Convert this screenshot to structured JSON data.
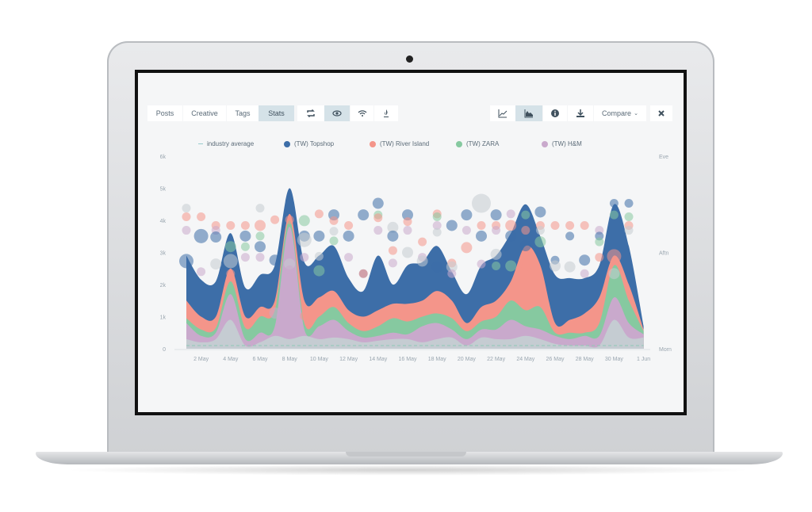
{
  "toolbar": {
    "tabs": [
      {
        "label": "Posts",
        "active": false
      },
      {
        "label": "Creative",
        "active": false
      },
      {
        "label": "Tags",
        "active": false
      },
      {
        "label": "Stats",
        "active": true
      }
    ],
    "icon_buttons": [
      {
        "icon": "retweet-icon",
        "active": false
      },
      {
        "icon": "eye-icon",
        "active": true
      },
      {
        "icon": "wifi-icon",
        "active": false
      },
      {
        "icon": "flame-icon",
        "active": false
      }
    ],
    "right_buttons": [
      {
        "icon": "line-chart-icon",
        "active": false
      },
      {
        "icon": "area-chart-icon",
        "active": true
      },
      {
        "icon": "info-icon",
        "active": false
      },
      {
        "icon": "download-icon",
        "active": false
      }
    ],
    "compare_label": "Compare",
    "close_icon": "close-icon"
  },
  "chart_data": {
    "type": "area",
    "stacked": true,
    "legend_placement": "top",
    "legend": [
      {
        "label": "industry average",
        "marker": "dash",
        "color": "#8fc9b5"
      },
      {
        "label": "(TW) Topshop",
        "color": "#3d6ea8"
      },
      {
        "label": "(TW) River Island",
        "color": "#f4958a"
      },
      {
        "label": "(TW) ZARA",
        "color": "#86c9a0"
      },
      {
        "label": "(TW) H&M",
        "color": "#c9a9cc"
      }
    ],
    "x_tick_labels": [
      "2 May",
      "4 May",
      "6 May",
      "8 May",
      "10 May",
      "12 May",
      "14 May",
      "16 May",
      "18 May",
      "20 May",
      "22 May",
      "24 May",
      "26 May",
      "28 May",
      "30 May",
      "1 Jun"
    ],
    "x_dates": [
      "1 May",
      "2 May",
      "3 May",
      "4 May",
      "5 May",
      "6 May",
      "7 May",
      "8 May",
      "9 May",
      "10 May",
      "11 May",
      "12 May",
      "13 May",
      "14 May",
      "15 May",
      "16 May",
      "17 May",
      "18 May",
      "19 May",
      "20 May",
      "21 May",
      "22 May",
      "23 May",
      "24 May",
      "25 May",
      "26 May",
      "27 May",
      "28 May",
      "29 May",
      "30 May",
      "31 May",
      "1 Jun"
    ],
    "y_tick_labels": [
      "0",
      "1k",
      "2k",
      "3k",
      "4k",
      "5k",
      "6k"
    ],
    "ylim": [
      0,
      6000
    ],
    "y2_tick_labels": [
      "Morn",
      "Aftn",
      "Eve"
    ],
    "industry_average": 100,
    "series": [
      {
        "color": "#c5ccd2",
        "values": [
          300,
          200,
          300,
          900,
          100,
          200,
          400,
          300,
          400,
          300,
          350,
          300,
          200,
          250,
          300,
          300,
          200,
          300,
          350,
          100,
          350,
          300,
          300,
          400,
          300,
          150,
          100,
          100,
          100,
          900,
          350,
          350
        ]
      },
      {
        "name": "(TW) H&M",
        "color": "#c9a9cc",
        "values": [
          500,
          200,
          200,
          800,
          200,
          300,
          300,
          3500,
          200,
          400,
          550,
          250,
          150,
          150,
          200,
          150,
          500,
          500,
          250,
          200,
          250,
          300,
          600,
          300,
          300,
          250,
          200,
          300,
          300,
          700,
          450,
          100
        ]
      },
      {
        "name": "(TW) ZARA",
        "color": "#86c9a0",
        "values": [
          150,
          200,
          150,
          400,
          350,
          500,
          500,
          200,
          200,
          300,
          400,
          250,
          200,
          300,
          450,
          400,
          300,
          300,
          350,
          250,
          250,
          400,
          600,
          500,
          700,
          100,
          200,
          100,
          400,
          1000,
          700,
          100
        ]
      },
      {
        "name": "(TW) River Island",
        "color": "#f4958a",
        "values": [
          550,
          400,
          350,
          400,
          350,
          300,
          300,
          200,
          700,
          600,
          500,
          400,
          450,
          500,
          450,
          550,
          500,
          700,
          550,
          250,
          450,
          500,
          600,
          2000,
          1300,
          300,
          400,
          600,
          800,
          300,
          500,
          50
        ]
      },
      {
        "name": "(TW) Topshop",
        "color": "#3d6ea8",
        "values": [
          1400,
          1150,
          1100,
          1100,
          900,
          1000,
          1100,
          800,
          1200,
          1300,
          1400,
          1000,
          800,
          1700,
          600,
          1200,
          1200,
          1400,
          900,
          900,
          1300,
          1400,
          1500,
          1300,
          900,
          1500,
          1300,
          1100,
          1000,
          1600,
          1200,
          100
        ]
      }
    ],
    "bubbles_time_axis": "0 = Morn, 1 = Aftn, 2 = Eve",
    "bubbles": [
      [
        1,
        1.46,
        "grey",
        "s"
      ],
      [
        1,
        1.37,
        "red",
        "s"
      ],
      [
        1,
        1.23,
        "purple",
        "s"
      ],
      [
        1,
        0.91,
        "blue",
        "l"
      ],
      [
        2,
        1.17,
        "blue",
        "l"
      ],
      [
        2,
        1.37,
        "red",
        "s"
      ],
      [
        2,
        0.8,
        "purple",
        "s"
      ],
      [
        3,
        1.28,
        "red",
        "s"
      ],
      [
        3,
        1.23,
        "purple",
        "s"
      ],
      [
        3,
        1.16,
        "blue",
        "m"
      ],
      [
        3,
        0.88,
        "grey",
        "m"
      ],
      [
        4,
        1.28,
        "red",
        "s"
      ],
      [
        4,
        1.06,
        "green",
        "m"
      ],
      [
        4,
        0.91,
        "grey",
        "l"
      ],
      [
        4,
        0.78,
        "red",
        "s"
      ],
      [
        5,
        1.28,
        "red",
        "s"
      ],
      [
        5,
        1.17,
        "blue",
        "m"
      ],
      [
        5,
        1.06,
        "green",
        "s"
      ],
      [
        5,
        0.95,
        "purple",
        "s"
      ],
      [
        6,
        1.46,
        "grey",
        "s"
      ],
      [
        6,
        1.28,
        "red",
        "m"
      ],
      [
        6,
        1.17,
        "green",
        "s"
      ],
      [
        6,
        1.06,
        "blue",
        "m"
      ],
      [
        6,
        0.95,
        "purple",
        "s"
      ],
      [
        7,
        1.34,
        "red",
        "s"
      ],
      [
        7,
        0.92,
        "blue",
        "m"
      ],
      [
        7,
        0.37,
        "purple",
        "m"
      ],
      [
        8,
        1.34,
        "red",
        "s"
      ],
      [
        8,
        0.88,
        "grey",
        "m"
      ],
      [
        8,
        0.82,
        "purple",
        "s"
      ],
      [
        9,
        1.33,
        "green",
        "m"
      ],
      [
        9,
        1.17,
        "blue",
        "m"
      ],
      [
        9,
        1.13,
        "grey",
        "l"
      ],
      [
        9,
        0.95,
        "purple",
        "s"
      ],
      [
        9,
        0.34,
        "red",
        "s"
      ],
      [
        10,
        1.4,
        "red",
        "s"
      ],
      [
        10,
        1.17,
        "blue",
        "m"
      ],
      [
        10,
        0.96,
        "grey",
        "s"
      ],
      [
        10,
        0.81,
        "green",
        "m"
      ],
      [
        11,
        1.39,
        "blue",
        "m"
      ],
      [
        11,
        1.33,
        "red",
        "s"
      ],
      [
        11,
        1.22,
        "grey",
        "s"
      ],
      [
        11,
        1.12,
        "green",
        "s"
      ],
      [
        12,
        1.28,
        "red",
        "s"
      ],
      [
        12,
        1.17,
        "blue",
        "m"
      ],
      [
        12,
        0.95,
        "purple",
        "s"
      ],
      [
        13,
        1.39,
        "blue",
        "m"
      ],
      [
        13,
        0.78,
        "darkred",
        "s"
      ],
      [
        14,
        1.51,
        "blue",
        "m"
      ],
      [
        14,
        1.39,
        "green",
        "s"
      ],
      [
        14,
        1.36,
        "red",
        "s"
      ],
      [
        14,
        1.23,
        "purple",
        "s"
      ],
      [
        15,
        1.26,
        "grey",
        "m"
      ],
      [
        15,
        1.17,
        "blue",
        "m"
      ],
      [
        15,
        1.02,
        "red",
        "s"
      ],
      [
        15,
        0.89,
        "purple",
        "s"
      ],
      [
        16,
        1.39,
        "blue",
        "m"
      ],
      [
        16,
        1.32,
        "red",
        "s"
      ],
      [
        16,
        1.23,
        "purple",
        "s"
      ],
      [
        16,
        1.0,
        "grey",
        "m"
      ],
      [
        17,
        1.11,
        "red",
        "s"
      ],
      [
        17,
        0.95,
        "purple",
        "s"
      ],
      [
        17,
        0.91,
        "grey",
        "m"
      ],
      [
        18,
        1.4,
        "red",
        "s"
      ],
      [
        18,
        1.37,
        "green",
        "s"
      ],
      [
        18,
        1.28,
        "purple",
        "s"
      ],
      [
        18,
        1.21,
        "grey",
        "s"
      ],
      [
        18,
        0.85,
        "blue",
        "m"
      ],
      [
        19,
        1.28,
        "blue",
        "m"
      ],
      [
        19,
        0.89,
        "red",
        "s"
      ],
      [
        19,
        0.85,
        "grey",
        "m"
      ],
      [
        19,
        0.78,
        "purple",
        "s"
      ],
      [
        20,
        1.39,
        "blue",
        "m"
      ],
      [
        20,
        1.23,
        "purple",
        "s"
      ],
      [
        20,
        1.05,
        "red",
        "m"
      ],
      [
        21,
        1.51,
        "grey",
        "xl"
      ],
      [
        21,
        1.28,
        "red",
        "s"
      ],
      [
        21,
        1.17,
        "blue",
        "m"
      ],
      [
        21,
        0.88,
        "purple",
        "s"
      ],
      [
        22,
        1.39,
        "blue",
        "m"
      ],
      [
        22,
        1.28,
        "red",
        "s"
      ],
      [
        22,
        1.23,
        "purple",
        "s"
      ],
      [
        22,
        0.98,
        "grey",
        "m"
      ],
      [
        22,
        0.86,
        "green",
        "s"
      ],
      [
        23,
        1.4,
        "purple",
        "s"
      ],
      [
        23,
        1.28,
        "red",
        "m"
      ],
      [
        23,
        1.17,
        "blue",
        "m"
      ],
      [
        23,
        0.86,
        "green",
        "m"
      ],
      [
        24,
        1.39,
        "green",
        "s"
      ],
      [
        24,
        1.23,
        "red",
        "s"
      ],
      [
        24,
        1.07,
        "blue",
        "m"
      ],
      [
        24,
        0.85,
        "red",
        "s"
      ],
      [
        25,
        1.42,
        "blue",
        "m"
      ],
      [
        25,
        1.28,
        "red",
        "s"
      ],
      [
        25,
        1.23,
        "grey",
        "s"
      ],
      [
        25,
        1.11,
        "green",
        "m"
      ],
      [
        26,
        1.28,
        "red",
        "s"
      ],
      [
        26,
        0.92,
        "blue",
        "s"
      ],
      [
        26,
        0.86,
        "grey",
        "m"
      ],
      [
        27,
        1.28,
        "red",
        "s"
      ],
      [
        27,
        1.17,
        "blue",
        "s"
      ],
      [
        27,
        0.85,
        "grey",
        "m"
      ],
      [
        28,
        1.28,
        "red",
        "s"
      ],
      [
        28,
        0.92,
        "blue",
        "m"
      ],
      [
        28,
        0.78,
        "purple",
        "s"
      ],
      [
        29,
        1.23,
        "purple",
        "s"
      ],
      [
        29,
        1.17,
        "blue",
        "s"
      ],
      [
        29,
        1.11,
        "green",
        "s"
      ],
      [
        29,
        0.95,
        "red",
        "s"
      ],
      [
        30,
        1.51,
        "blue",
        "s"
      ],
      [
        30,
        1.39,
        "green",
        "s"
      ],
      [
        30,
        0.96,
        "red",
        "l"
      ],
      [
        30,
        0.78,
        "grey",
        "m"
      ],
      [
        31,
        1.51,
        "blue",
        "s"
      ],
      [
        31,
        1.37,
        "green",
        "s"
      ],
      [
        31,
        1.28,
        "red",
        "s"
      ],
      [
        31,
        1.23,
        "grey",
        "s"
      ]
    ],
    "bubble_colors": {
      "grey": "#c5ccd2",
      "red": "#f4958a",
      "purple": "#c9a9cc",
      "blue": "#3d6ea8",
      "green": "#86c9a0",
      "darkred": "#b35a6a"
    }
  }
}
